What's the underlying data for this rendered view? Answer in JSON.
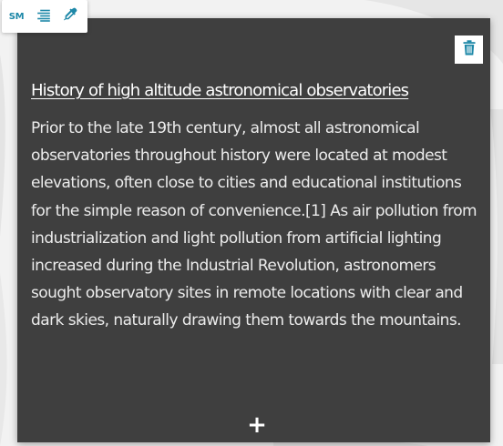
{
  "toolbar": {
    "size_label": "SM",
    "align_icon": "align-right-icon",
    "picker_icon": "eyedropper-icon"
  },
  "card": {
    "title": "History of high altitude astronomical observatories",
    "body": "Prior to the late 19th century, almost all astronomical observatories throughout history were located at modest elevations, often close to cities and educational institutions for the simple reason of convenience.[1] As air pollution from industrialization and light pollution from artificial lighting increased during the Industrial Revolution, astronomers sought observatory sites in remote locations with clear and dark skies, naturally drawing them towards the mountains.",
    "delete_icon": "trash-icon",
    "add_label": "+"
  },
  "colors": {
    "card_background": "#3f3f3f",
    "accent": "#1e88a8",
    "page_background": "#f2f2f2"
  }
}
